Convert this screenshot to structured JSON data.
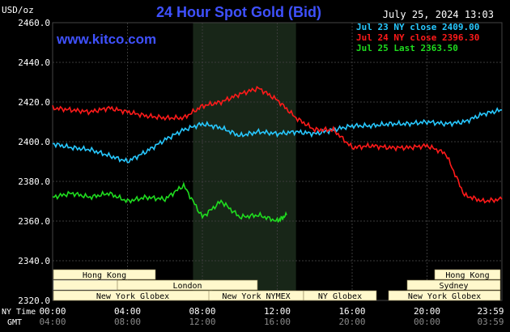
{
  "header": {
    "title": "24 Hour Spot Gold (Bid)",
    "units_label": "USD/oz",
    "timestamp": "July 25, 2024 13:03",
    "site": "www.kitco.com",
    "title_color": "#3f51ff"
  },
  "legend": [
    {
      "label": "Jul 23 NY close 2409.00",
      "color": "#27c8ff"
    },
    {
      "label": "Jul 24 NY close 2396.30",
      "color": "#ff1a1a"
    },
    {
      "label": "Jul 25 Last 2363.50",
      "color": "#1fdc1f"
    }
  ],
  "axis_labels": {
    "ny_time": "NY Time",
    "gmt": "GMT"
  },
  "sessions": [
    {
      "label": "Hong Kong",
      "color": "#fff8cc"
    },
    {
      "label": "London",
      "color": "#fff8cc"
    },
    {
      "label": "New York Globex",
      "color": "#fff8cc"
    },
    {
      "label": "New York NYMEX",
      "color": "#fff8cc"
    },
    {
      "label": "NY Globex",
      "color": "#fff8cc"
    },
    {
      "label": "Hong Kong",
      "color": "#fff8cc"
    },
    {
      "label": "Sydney",
      "color": "#fff8cc"
    },
    {
      "label": "New York Globex",
      "color": "#fff8cc"
    }
  ],
  "chart_data": {
    "type": "line",
    "title": "24 Hour Spot Gold (Bid)",
    "ylabel": "USD/oz",
    "ylim": [
      2320,
      2460
    ],
    "yticks": [
      "2320.0",
      "2340.0",
      "2360.0",
      "2380.0",
      "2400.0",
      "2420.0",
      "2440.0",
      "2460.0"
    ],
    "xlim": [
      0,
      24
    ],
    "x_ticks_ny": [
      "00:00",
      "04:00",
      "08:00",
      "12:00",
      "16:00",
      "20:00",
      "23:59"
    ],
    "x_ticks_gmt": [
      "04:00",
      "08:00",
      "12:00",
      "16:00",
      "20:00",
      "00:00",
      "03:59"
    ],
    "grid": true,
    "legend_position": "top-right",
    "series": [
      {
        "name": "Jul 23 NY close 2409.00",
        "color": "#27c8ff",
        "x": [
          0,
          1,
          2,
          3,
          4,
          5,
          6,
          7,
          8,
          9,
          10,
          11,
          12,
          13,
          14,
          15,
          16,
          17,
          18,
          19,
          20,
          21,
          22,
          23,
          24
        ],
        "y": [
          2399,
          2397,
          2396,
          2393,
          2390,
          2395,
          2401,
          2406,
          2409,
          2407,
          2403,
          2405,
          2404,
          2405,
          2404,
          2406,
          2408,
          2408,
          2409,
          2409,
          2410,
          2409,
          2410,
          2414,
          2416
        ]
      },
      {
        "name": "Jul 24 NY close 2396.30",
        "color": "#ff1a1a",
        "x": [
          0,
          1,
          2,
          3,
          4,
          5,
          6,
          7,
          8,
          9,
          10,
          11,
          12,
          13,
          14,
          15,
          16,
          17,
          18,
          19,
          20,
          21,
          22,
          23,
          24
        ],
        "y": [
          2417,
          2416,
          2415,
          2417,
          2415,
          2413,
          2412,
          2412,
          2418,
          2420,
          2424,
          2427,
          2421,
          2412,
          2406,
          2406,
          2397,
          2398,
          2397,
          2397,
          2398,
          2394,
          2373,
          2370,
          2371
        ]
      },
      {
        "name": "Jul 25 Last 2363.50",
        "color": "#1fdc1f",
        "x": [
          0,
          1,
          2,
          3,
          4,
          5,
          6,
          7,
          8,
          9,
          10,
          11,
          12,
          12.5
        ],
        "y": [
          2372,
          2374,
          2372,
          2374,
          2370,
          2372,
          2371,
          2378,
          2362,
          2370,
          2362,
          2363,
          2360,
          2363
        ]
      }
    ]
  }
}
